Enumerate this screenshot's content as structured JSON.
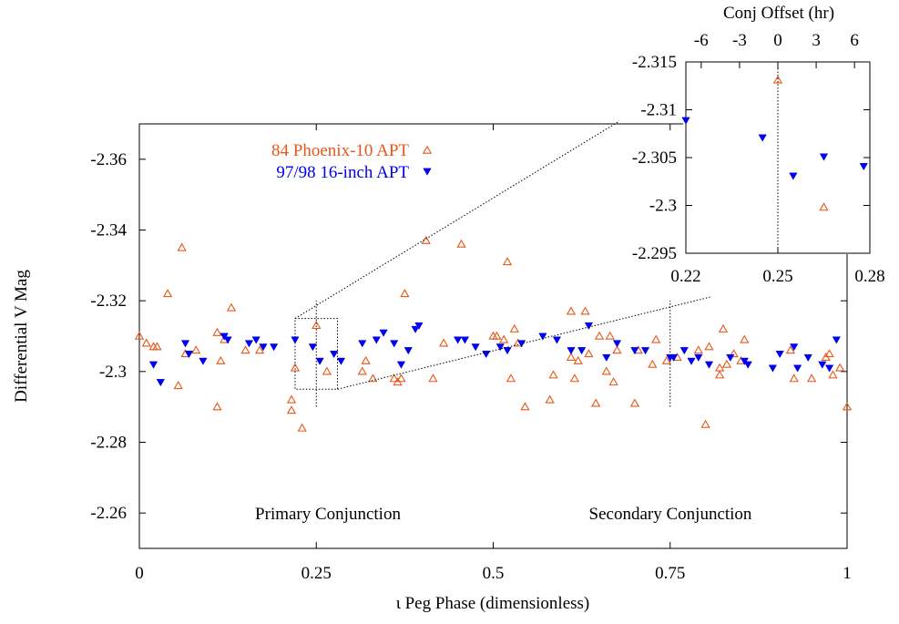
{
  "chart_data": [
    {
      "type": "scatter",
      "xlabel": "ι Peg Phase (dimensionless)",
      "ylabel": "Differential V Mag",
      "xlim": [
        0,
        1
      ],
      "ylim": [
        -2.25,
        -2.37
      ],
      "y_reversed": true,
      "xticks": [
        0,
        0.25,
        0.5,
        0.75,
        1
      ],
      "xtick_labels": [
        "0",
        "0.25",
        "0.5",
        "0.75",
        "1"
      ],
      "yticks": [
        -2.36,
        -2.34,
        -2.32,
        -2.3,
        -2.28,
        -2.26
      ],
      "ytick_labels": [
        "-2.36",
        "-2.34",
        "-2.32",
        "-2.3",
        "-2.28",
        "-2.26"
      ],
      "legend_position": "top-left",
      "annotations": [
        {
          "text": "Primary Conjunction",
          "x": 0.25,
          "y": -2.261
        },
        {
          "text": "Secondary Conjunction",
          "x": 0.75,
          "y": -2.261
        }
      ],
      "conjunction_lines": [
        {
          "x": 0.25,
          "y_range": [
            -2.29,
            -2.32
          ]
        },
        {
          "x": 0.75,
          "y_range": [
            -2.29,
            -2.32
          ]
        }
      ],
      "zoom_box": {
        "x_range": [
          0.22,
          0.28
        ],
        "y_range": [
          -2.295,
          -2.315
        ]
      },
      "series": [
        {
          "name": "84 Phoenix-10 APT",
          "color": "#e8561a",
          "marker": "triangle-up-open",
          "points": [
            [
              0.0,
              -2.31
            ],
            [
              0.01,
              -2.308
            ],
            [
              0.02,
              -2.307
            ],
            [
              0.025,
              -2.307
            ],
            [
              0.04,
              -2.322
            ],
            [
              0.055,
              -2.296
            ],
            [
              0.06,
              -2.335
            ],
            [
              0.065,
              -2.305
            ],
            [
              0.08,
              -2.306
            ],
            [
              0.11,
              -2.29
            ],
            [
              0.11,
              -2.311
            ],
            [
              0.115,
              -2.303
            ],
            [
              0.12,
              -2.309
            ],
            [
              0.13,
              -2.318
            ],
            [
              0.15,
              -2.306
            ],
            [
              0.17,
              -2.306
            ],
            [
              0.215,
              -2.292
            ],
            [
              0.215,
              -2.289
            ],
            [
              0.22,
              -2.301
            ],
            [
              0.23,
              -2.284
            ],
            [
              0.25,
              -2.313
            ],
            [
              0.265,
              -2.3
            ],
            [
              0.315,
              -2.3
            ],
            [
              0.32,
              -2.303
            ],
            [
              0.33,
              -2.298
            ],
            [
              0.36,
              -2.298
            ],
            [
              0.365,
              -2.297
            ],
            [
              0.37,
              -2.298
            ],
            [
              0.375,
              -2.322
            ],
            [
              0.405,
              -2.337
            ],
            [
              0.415,
              -2.298
            ],
            [
              0.43,
              -2.308
            ],
            [
              0.455,
              -2.336
            ],
            [
              0.5,
              -2.31
            ],
            [
              0.505,
              -2.31
            ],
            [
              0.515,
              -2.309
            ],
            [
              0.52,
              -2.331
            ],
            [
              0.525,
              -2.298
            ],
            [
              0.53,
              -2.312
            ],
            [
              0.535,
              -2.308
            ],
            [
              0.545,
              -2.29
            ],
            [
              0.58,
              -2.292
            ],
            [
              0.585,
              -2.299
            ],
            [
              0.61,
              -2.304
            ],
            [
              0.61,
              -2.317
            ],
            [
              0.615,
              -2.298
            ],
            [
              0.62,
              -2.303
            ],
            [
              0.63,
              -2.317
            ],
            [
              0.635,
              -2.305
            ],
            [
              0.645,
              -2.291
            ],
            [
              0.65,
              -2.31
            ],
            [
              0.66,
              -2.3
            ],
            [
              0.665,
              -2.31
            ],
            [
              0.67,
              -2.297
            ],
            [
              0.675,
              -2.306
            ],
            [
              0.7,
              -2.291
            ],
            [
              0.705,
              -2.306
            ],
            [
              0.725,
              -2.302
            ],
            [
              0.73,
              -2.309
            ],
            [
              0.745,
              -2.303
            ],
            [
              0.76,
              -2.304
            ],
            [
              0.79,
              -2.306
            ],
            [
              0.8,
              -2.285
            ],
            [
              0.805,
              -2.307
            ],
            [
              0.82,
              -2.299
            ],
            [
              0.82,
              -2.301
            ],
            [
              0.825,
              -2.312
            ],
            [
              0.83,
              -2.302
            ],
            [
              0.84,
              -2.305
            ],
            [
              0.85,
              -2.303
            ],
            [
              0.855,
              -2.309
            ],
            [
              0.92,
              -2.306
            ],
            [
              0.925,
              -2.298
            ],
            [
              0.95,
              -2.298
            ],
            [
              0.97,
              -2.304
            ],
            [
              0.975,
              -2.305
            ],
            [
              0.98,
              -2.299
            ],
            [
              0.99,
              -2.301
            ],
            [
              1.0,
              -2.29
            ]
          ]
        },
        {
          "name": "97/98 16-inch APT",
          "color": "#0000ee",
          "marker": "triangle-down-filled",
          "points": [
            [
              0.02,
              -2.302
            ],
            [
              0.03,
              -2.297
            ],
            [
              0.065,
              -2.308
            ],
            [
              0.07,
              -2.305
            ],
            [
              0.09,
              -2.303
            ],
            [
              0.12,
              -2.31
            ],
            [
              0.125,
              -2.309
            ],
            [
              0.155,
              -2.308
            ],
            [
              0.165,
              -2.309
            ],
            [
              0.175,
              -2.307
            ],
            [
              0.19,
              -2.307
            ],
            [
              0.22,
              -2.309
            ],
            [
              0.245,
              -2.307
            ],
            [
              0.255,
              -2.303
            ],
            [
              0.275,
              -2.305
            ],
            [
              0.285,
              -2.303
            ],
            [
              0.315,
              -2.308
            ],
            [
              0.335,
              -2.309
            ],
            [
              0.345,
              -2.311
            ],
            [
              0.36,
              -2.308
            ],
            [
              0.37,
              -2.302
            ],
            [
              0.38,
              -2.306
            ],
            [
              0.39,
              -2.312
            ],
            [
              0.395,
              -2.313
            ],
            [
              0.45,
              -2.309
            ],
            [
              0.46,
              -2.309
            ],
            [
              0.475,
              -2.307
            ],
            [
              0.49,
              -2.305
            ],
            [
              0.51,
              -2.307
            ],
            [
              0.52,
              -2.306
            ],
            [
              0.54,
              -2.308
            ],
            [
              0.57,
              -2.31
            ],
            [
              0.59,
              -2.309
            ],
            [
              0.61,
              -2.306
            ],
            [
              0.625,
              -2.306
            ],
            [
              0.635,
              -2.313
            ],
            [
              0.66,
              -2.304
            ],
            [
              0.675,
              -2.308
            ],
            [
              0.7,
              -2.306
            ],
            [
              0.715,
              -2.306
            ],
            [
              0.75,
              -2.304
            ],
            [
              0.755,
              -2.304
            ],
            [
              0.77,
              -2.306
            ],
            [
              0.78,
              -2.303
            ],
            [
              0.79,
              -2.304
            ],
            [
              0.805,
              -2.302
            ],
            [
              0.835,
              -2.304
            ],
            [
              0.855,
              -2.303
            ],
            [
              0.86,
              -2.302
            ],
            [
              0.895,
              -2.301
            ],
            [
              0.905,
              -2.305
            ],
            [
              0.925,
              -2.307
            ],
            [
              0.93,
              -2.301
            ],
            [
              0.945,
              -2.304
            ],
            [
              0.965,
              -2.302
            ],
            [
              0.975,
              -2.301
            ],
            [
              0.985,
              -2.309
            ]
          ]
        }
      ]
    },
    {
      "type": "scatter",
      "inset": true,
      "xlim": [
        0.22,
        0.28
      ],
      "ylim": [
        -2.295,
        -2.315
      ],
      "y_reversed": true,
      "xticks": [
        0.22,
        0.25,
        0.28
      ],
      "xtick_labels": [
        "0.22",
        "0.25",
        "0.28"
      ],
      "yticks": [
        -2.315,
        -2.31,
        -2.305,
        -2.3,
        -2.295
      ],
      "ytick_labels": [
        "-2.315",
        "-2.31",
        "-2.305",
        "-2.3",
        "-2.295"
      ],
      "x2label": "Conj Offset (hr)",
      "x2ticks": [
        -6,
        -3,
        0,
        3,
        6
      ],
      "x2tick_labels": [
        "-6",
        "-3",
        "0",
        "3",
        "6"
      ],
      "x2lim": [
        -7.2,
        7.2
      ],
      "conjunction_line_x": 0.25,
      "series": [
        {
          "name": "84 Phoenix-10 APT",
          "color": "#e8561a",
          "marker": "triangle-up-open",
          "points": [
            [
              0.25,
              -2.3131
            ],
            [
              0.265,
              -2.2998
            ]
          ]
        },
        {
          "name": "97/98 16-inch APT",
          "color": "#0000ee",
          "marker": "triangle-down-filled",
          "points": [
            [
              0.22,
              -2.3089
            ],
            [
              0.245,
              -2.3071
            ],
            [
              0.255,
              -2.3031
            ],
            [
              0.265,
              -2.3051
            ],
            [
              0.278,
              -2.3041
            ]
          ]
        }
      ]
    }
  ]
}
